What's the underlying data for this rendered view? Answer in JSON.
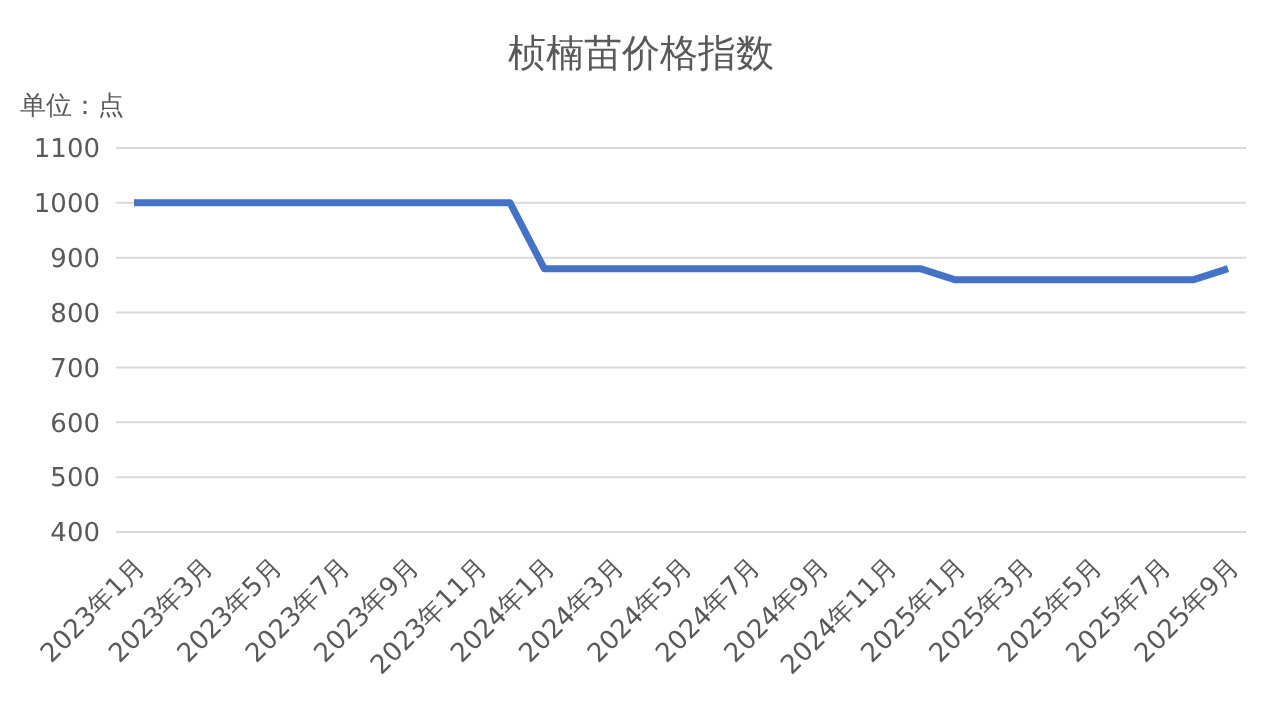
{
  "chart_data": {
    "type": "line",
    "title": "桢楠苗价格指数",
    "annotations": [
      "单位：点"
    ],
    "categories": [
      "2023年1月",
      null,
      "2023年3月",
      null,
      "2023年5月",
      null,
      "2023年7月",
      null,
      "2023年9月",
      null,
      "2023年11月",
      null,
      "2024年1月",
      null,
      "2024年3月",
      null,
      "2024年5月",
      null,
      "2024年7月",
      null,
      "2024年9月",
      null,
      "2024年11月",
      null,
      "2025年1月",
      null,
      "2025年3月",
      null,
      "2025年5月",
      null,
      "2025年7月",
      null,
      "2025年9月"
    ],
    "series": [
      {
        "color": "#4472c4",
        "values": [
          1000,
          1000,
          1000,
          1000,
          1000,
          1000,
          1000,
          1000,
          1000,
          1000,
          1000,
          1000,
          880,
          880,
          880,
          880,
          880,
          880,
          880,
          880,
          880,
          880,
          880,
          880,
          860,
          860,
          860,
          860,
          860,
          860,
          860,
          860,
          880
        ]
      }
    ],
    "ylim": [
      400,
      1100
    ],
    "yticks": [
      400,
      500,
      600,
      700,
      800,
      900,
      1000,
      1100
    ],
    "grid": "y",
    "legend": false,
    "marker": "none",
    "line_style": "solid"
  }
}
